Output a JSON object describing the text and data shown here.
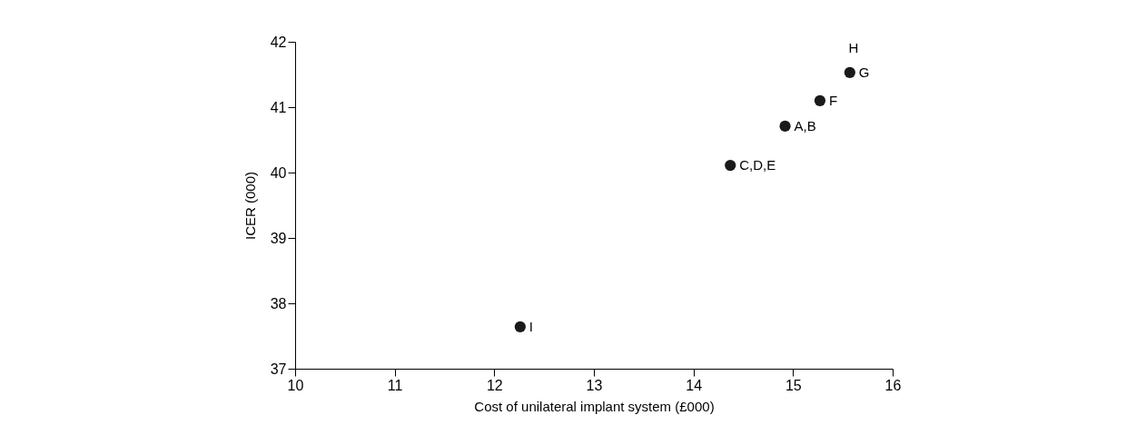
{
  "chart_data": {
    "type": "scatter",
    "xlabel": "Cost of unilateral implant system (£000)",
    "ylabel": "ICER (000)",
    "x": [
      12.26,
      14.37,
      14.92,
      15.27,
      15.57
    ],
    "series": [
      {
        "color": "#1a1a1a",
        "values": [
          37.64,
          40.11,
          40.71,
          41.1,
          41.53
        ]
      }
    ],
    "xlim": [
      10,
      16
    ],
    "xticks": [
      10,
      11,
      12,
      13,
      14,
      15,
      16
    ],
    "ylim": [
      37,
      42
    ],
    "yticks": [
      37,
      38,
      39,
      40,
      41,
      42
    ],
    "grid": false,
    "legend": false,
    "marker": "circle",
    "annotations": [
      {
        "text": "I",
        "x": 12.26,
        "y": 37.64
      },
      {
        "text": "C,D,E",
        "x": 14.37,
        "y": 40.11
      },
      {
        "text": "A,B",
        "x": 14.92,
        "y": 40.71
      },
      {
        "text": "F",
        "x": 15.27,
        "y": 41.1
      },
      {
        "text": "G",
        "x": 15.57,
        "y": 41.53
      },
      {
        "text": "H",
        "x": 15.57,
        "y": 41.53
      }
    ]
  }
}
